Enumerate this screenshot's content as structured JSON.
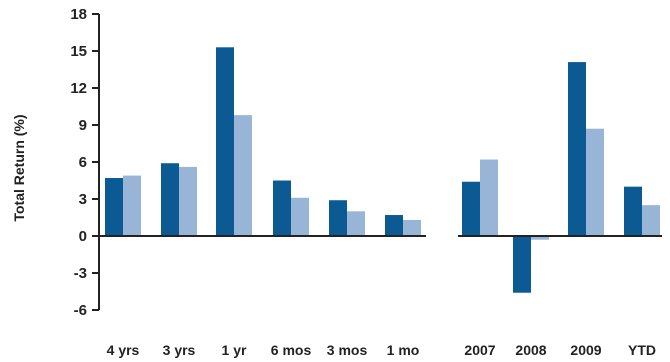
{
  "chart_data": {
    "type": "bar",
    "title": "",
    "xlabel": "",
    "ylabel": "Total Return (%)",
    "ylim": [
      -6,
      18
    ],
    "yticks": [
      -6,
      -3,
      0,
      3,
      6,
      9,
      12,
      15,
      18
    ],
    "grid": false,
    "legend": "none",
    "colors": [
      "#0b5a93",
      "#98b4d6"
    ],
    "groups": [
      {
        "categories": [
          "4 yrs",
          "3 yrs",
          "1 yr",
          "6 mos",
          "3 mos",
          "1 mo"
        ],
        "series": [
          {
            "values": [
              4.7,
              5.9,
              15.3,
              4.5,
              2.9,
              1.7
            ]
          },
          {
            "values": [
              4.9,
              5.6,
              9.8,
              3.1,
              2.0,
              1.3
            ]
          }
        ]
      },
      {
        "categories": [
          "2007",
          "2008",
          "2009",
          "YTD"
        ],
        "series": [
          {
            "values": [
              4.4,
              -4.6,
              14.1,
              4.0
            ]
          },
          {
            "values": [
              6.2,
              -0.3,
              8.7,
              2.5
            ]
          }
        ]
      }
    ]
  }
}
